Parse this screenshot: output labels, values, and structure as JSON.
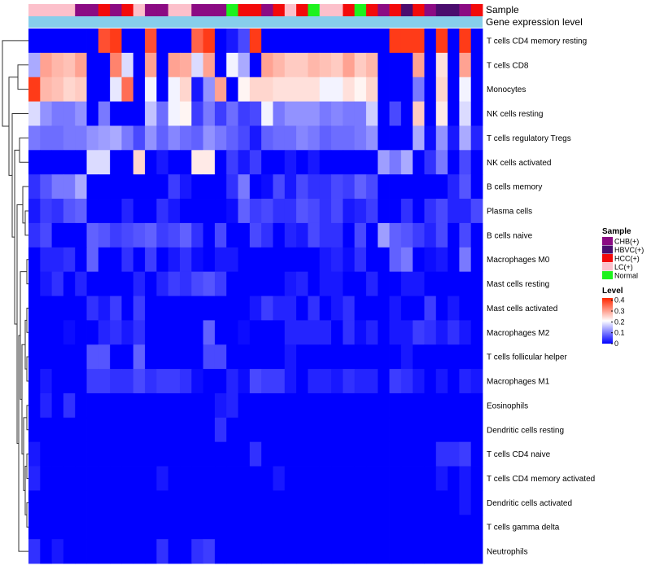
{
  "chart_data": {
    "type": "heatmap",
    "annotation_labels": {
      "sample": "Sample",
      "gene_expression_level": "Gene expression level"
    },
    "rows": [
      "T cells CD4 memory resting",
      "T cells CD8",
      "Monocytes",
      "NK cells resting",
      "T cells regulatory  Tregs",
      "NK cells activated",
      "B cells memory",
      "Plasma cells",
      "B cells naive",
      "Macrophages M0",
      "Mast cells resting",
      "Mast cells activated",
      "Macrophages M2",
      "T cells follicular helper",
      "Macrophages M1",
      "Eosinophils",
      "Dendritic cells resting",
      "T cells CD4 naive",
      "T cells CD4 memory activated",
      "Dendritic cells activated",
      "T cells gamma delta",
      "Neutrophils"
    ],
    "sample_groups": [
      "CHB(+)",
      "HBVC(+)",
      "HCC(+)",
      "LC(+)",
      "Normal"
    ],
    "sample_colors": [
      "#8B0B83",
      "#4A0D6E",
      "#F30A0A",
      "#FCC0CB",
      "#1DF21D"
    ],
    "column_samples": [
      3,
      3,
      3,
      3,
      0,
      0,
      2,
      0,
      2,
      3,
      0,
      0,
      3,
      3,
      0,
      0,
      0,
      4,
      2,
      2,
      0,
      2,
      3,
      2,
      4,
      3,
      3,
      2,
      4,
      2,
      0,
      2,
      1,
      2,
      0,
      1,
      1,
      0,
      2
    ],
    "legend_sample_title": "Sample",
    "legend_level_title": "Level",
    "legend_level_ticks": [
      "0.4",
      "0.3",
      "0.2",
      "0.1",
      "0"
    ],
    "value_range": [
      0,
      0.42
    ],
    "gradient_colors": [
      "#0000FF",
      "#FFFFFF",
      "#FF2600"
    ],
    "matrix": [
      [
        0,
        0,
        0,
        0,
        0,
        0,
        0.38,
        0.4,
        0,
        0,
        0.38,
        0,
        0,
        0,
        0.36,
        0.4,
        0,
        0.02,
        0.06,
        0.4,
        0,
        0,
        0,
        0,
        0,
        0,
        0,
        0,
        0,
        0,
        0,
        0.4,
        0.4,
        0.4,
        0,
        0.4,
        0,
        0.4,
        0
      ],
      [
        0.14,
        0.3,
        0.28,
        0.27,
        0.3,
        0,
        0,
        0.33,
        0.18,
        0,
        0.3,
        0,
        0.3,
        0.29,
        0.18,
        0.3,
        0,
        0.2,
        0.14,
        0,
        0.3,
        0.28,
        0.26,
        0.26,
        0.28,
        0.27,
        0.26,
        0.3,
        0.26,
        0.28,
        0,
        0,
        0,
        0.3,
        0,
        0.24,
        0,
        0.3,
        0
      ],
      [
        0.4,
        0.28,
        0.27,
        0.25,
        0.26,
        0,
        0,
        0.19,
        0.35,
        0,
        0.2,
        0,
        0.2,
        0.25,
        0.02,
        0.12,
        0.3,
        0,
        0.22,
        0.25,
        0.25,
        0.24,
        0.24,
        0.24,
        0.24,
        0.2,
        0.2,
        0.24,
        0.22,
        0.25,
        0,
        0,
        0,
        0.1,
        0,
        0.25,
        0,
        0.2,
        0
      ],
      [
        0.18,
        0.12,
        0.1,
        0.1,
        0.12,
        0,
        0.1,
        0,
        0,
        0,
        0.16,
        0.09,
        0.2,
        0.22,
        0.05,
        0.1,
        0.05,
        0.09,
        0.05,
        0.06,
        0.2,
        0.1,
        0.12,
        0.12,
        0.12,
        0.1,
        0.11,
        0.1,
        0.1,
        0.17,
        0,
        0.06,
        0,
        0.26,
        0,
        0.23,
        0,
        0.18,
        0
      ],
      [
        0.1,
        0.09,
        0.09,
        0.1,
        0.1,
        0.12,
        0.13,
        0.14,
        0.1,
        0.06,
        0.12,
        0.08,
        0.11,
        0.09,
        0.08,
        0.12,
        0.1,
        0.08,
        0.06,
        0.02,
        0.08,
        0.09,
        0.09,
        0.11,
        0.1,
        0.08,
        0.09,
        0.09,
        0.1,
        0.12,
        0,
        0,
        0,
        0.14,
        0.01,
        0.12,
        0.02,
        0.14,
        0.03
      ],
      [
        0,
        0,
        0,
        0,
        0,
        0.18,
        0.18,
        0,
        0,
        0.25,
        0,
        0.02,
        0,
        0,
        0.23,
        0.23,
        0,
        0.05,
        0.02,
        0.05,
        0,
        0,
        0.02,
        0,
        0.02,
        0,
        0,
        0,
        0,
        0,
        0.13,
        0.1,
        0.14,
        0,
        0.04,
        0.1,
        0,
        0.06,
        0
      ],
      [
        0.04,
        0.07,
        0.1,
        0.1,
        0.14,
        0,
        0,
        0,
        0,
        0,
        0,
        0,
        0.05,
        0.02,
        0,
        0,
        0,
        0.04,
        0.1,
        0,
        0.01,
        0.06,
        0.02,
        0.06,
        0.04,
        0.04,
        0.06,
        0.05,
        0.08,
        0.06,
        0,
        0,
        0,
        0,
        0,
        0,
        0.03,
        0.07,
        0
      ],
      [
        0.02,
        0.05,
        0.04,
        0.07,
        0.08,
        0,
        0,
        0,
        0.03,
        0,
        0,
        0.04,
        0.02,
        0,
        0,
        0,
        0,
        0.01,
        0.08,
        0.05,
        0.06,
        0.04,
        0.04,
        0.07,
        0.06,
        0.04,
        0.06,
        0.02,
        0.03,
        0.05,
        0,
        0,
        0.04,
        0,
        0.04,
        0.06,
        0.03,
        0.03,
        0.06
      ],
      [
        0.04,
        0.06,
        0,
        0,
        0,
        0.08,
        0.07,
        0.05,
        0.06,
        0.07,
        0.08,
        0.05,
        0.06,
        0.08,
        0.04,
        0,
        0.06,
        0,
        0,
        0.06,
        0.04,
        0,
        0.03,
        0.02,
        0.06,
        0.04,
        0.04,
        0,
        0.06,
        0,
        0.13,
        0.08,
        0.07,
        0.05,
        0.03,
        0.06,
        0,
        0.06,
        0
      ],
      [
        0,
        0.03,
        0.03,
        0.04,
        0,
        0.08,
        0,
        0,
        0.04,
        0,
        0.05,
        0,
        0.02,
        0.04,
        0.01,
        0,
        0.02,
        0.02,
        0,
        0,
        0,
        0,
        0,
        0,
        0,
        0.02,
        0.03,
        0.01,
        0.04,
        0,
        0,
        0.08,
        0.1,
        0,
        0.01,
        0.02,
        0,
        0.1,
        0
      ],
      [
        0,
        0.02,
        0.04,
        0,
        0.03,
        0,
        0,
        0,
        0,
        0.03,
        0,
        0.03,
        0.05,
        0.04,
        0.06,
        0.07,
        0.05,
        0,
        0,
        0,
        0,
        0,
        0.02,
        0.03,
        0,
        0.02,
        0.02,
        0,
        0,
        0.03,
        0,
        0,
        0.02,
        0.02,
        0,
        0,
        0,
        0,
        0
      ],
      [
        0,
        0,
        0,
        0,
        0,
        0.04,
        0.02,
        0.05,
        0,
        0.05,
        0,
        0,
        0,
        0,
        0,
        0,
        0,
        0,
        0,
        0.02,
        0.05,
        0.03,
        0.03,
        0,
        0.04,
        0,
        0.02,
        0.04,
        0,
        0,
        0,
        0.02,
        0,
        0,
        0.05,
        0,
        0.02,
        0,
        0
      ],
      [
        0,
        0,
        0,
        0.01,
        0,
        0,
        0.03,
        0.04,
        0.02,
        0.04,
        0,
        0,
        0,
        0,
        0,
        0.08,
        0,
        0,
        0.01,
        0,
        0,
        0,
        0.03,
        0.03,
        0.03,
        0.03,
        0,
        0.04,
        0.01,
        0.03,
        0,
        0.02,
        0.02,
        0.05,
        0.04,
        0.02,
        0.04,
        0.02,
        0
      ],
      [
        0,
        0,
        0,
        0,
        0,
        0.07,
        0.07,
        0,
        0,
        0.08,
        0,
        0,
        0,
        0,
        0,
        0.06,
        0.06,
        0,
        0,
        0,
        0,
        0,
        0.02,
        0,
        0,
        0,
        0,
        0,
        0,
        0,
        0,
        0,
        0.02,
        0,
        0,
        0,
        0,
        0,
        0
      ],
      [
        0,
        0.02,
        0,
        0,
        0,
        0.05,
        0.05,
        0.04,
        0.04,
        0.06,
        0.04,
        0.05,
        0.05,
        0.04,
        0.01,
        0,
        0,
        0.03,
        0.01,
        0.06,
        0.05,
        0.05,
        0.02,
        0,
        0.03,
        0.03,
        0.02,
        0.04,
        0.03,
        0.03,
        0,
        0.05,
        0.04,
        0.02,
        0,
        0.02,
        0,
        0.03,
        0.02
      ],
      [
        0,
        0.03,
        0,
        0.04,
        0,
        0,
        0,
        0,
        0,
        0,
        0,
        0,
        0,
        0,
        0,
        0,
        0.02,
        0.03,
        0,
        0,
        0,
        0,
        0,
        0,
        0,
        0,
        0,
        0,
        0,
        0,
        0,
        0,
        0,
        0,
        0,
        0,
        0,
        0,
        0
      ],
      [
        0,
        0,
        0,
        0,
        0,
        0,
        0,
        0,
        0,
        0,
        0,
        0,
        0,
        0,
        0,
        0,
        0.04,
        0,
        0,
        0,
        0,
        0,
        0,
        0,
        0,
        0,
        0,
        0,
        0,
        0,
        0,
        0,
        0,
        0,
        0,
        0,
        0,
        0,
        0
      ],
      [
        0.02,
        0,
        0,
        0,
        0,
        0,
        0,
        0,
        0,
        0,
        0,
        0,
        0,
        0,
        0,
        0,
        0,
        0,
        0,
        0.04,
        0,
        0,
        0,
        0,
        0,
        0,
        0,
        0,
        0,
        0,
        0,
        0,
        0,
        0,
        0,
        0.04,
        0.04,
        0.05,
        0
      ],
      [
        0.03,
        0,
        0,
        0,
        0,
        0,
        0,
        0,
        0,
        0,
        0,
        0.02,
        0,
        0,
        0,
        0,
        0,
        0,
        0,
        0,
        0,
        0.02,
        0,
        0,
        0,
        0,
        0,
        0,
        0,
        0,
        0,
        0,
        0,
        0,
        0,
        0.02,
        0,
        0.02,
        0
      ],
      [
        0,
        0,
        0,
        0,
        0,
        0,
        0,
        0,
        0,
        0,
        0,
        0,
        0,
        0,
        0,
        0,
        0,
        0,
        0,
        0,
        0,
        0,
        0,
        0,
        0,
        0,
        0,
        0,
        0,
        0,
        0,
        0,
        0,
        0,
        0,
        0,
        0,
        0.02,
        0
      ],
      [
        0,
        0,
        0,
        0,
        0,
        0,
        0,
        0,
        0,
        0,
        0,
        0,
        0,
        0,
        0,
        0,
        0,
        0,
        0,
        0,
        0,
        0,
        0,
        0,
        0,
        0,
        0,
        0,
        0,
        0,
        0,
        0,
        0,
        0,
        0,
        0,
        0,
        0,
        0
      ],
      [
        0.04,
        0,
        0.02,
        0,
        0,
        0,
        0,
        0,
        0,
        0,
        0,
        0.04,
        0,
        0,
        0.04,
        0.05,
        0,
        0,
        0,
        0,
        0,
        0,
        0,
        0,
        0,
        0,
        0,
        0,
        0,
        0,
        0,
        0,
        0,
        0,
        0,
        0,
        0,
        0,
        0
      ]
    ]
  }
}
